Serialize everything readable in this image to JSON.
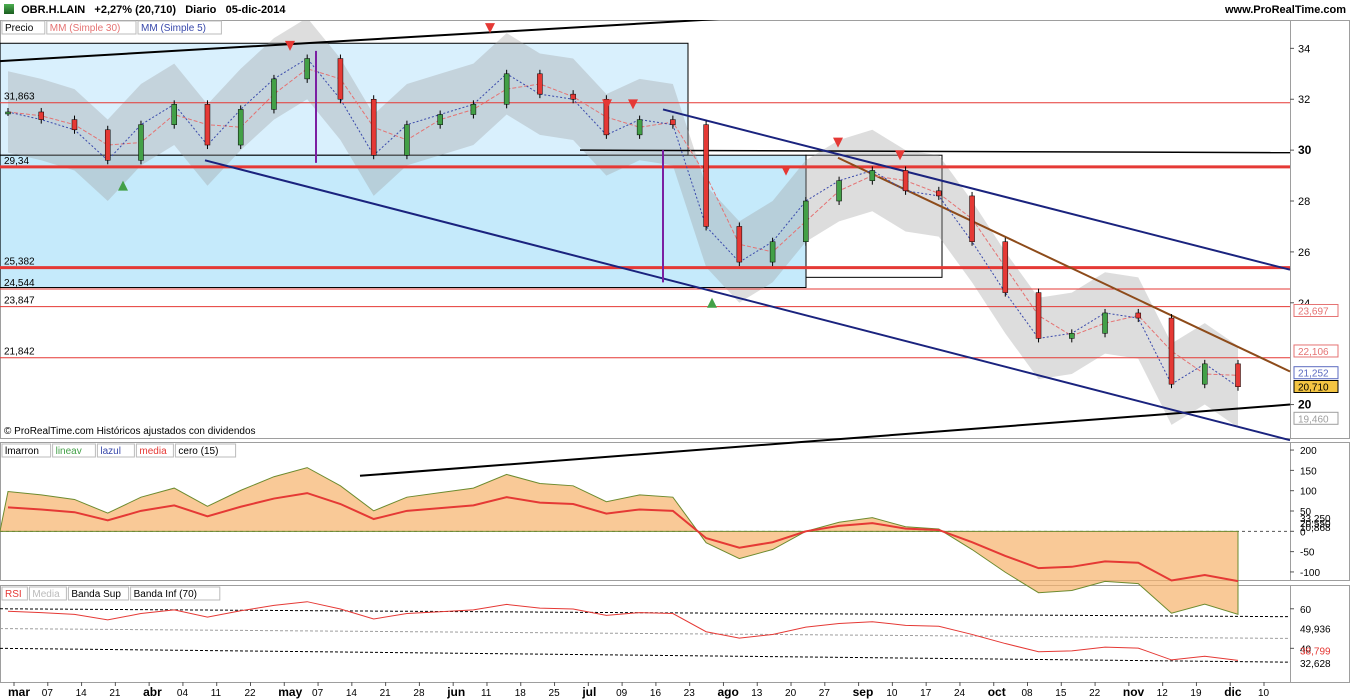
{
  "header": {
    "ticker": "OBR.H.LAIN",
    "change": "+2,27% (20,710)",
    "period": "Diario",
    "date": "05-dic-2014",
    "brand": "www.ProRealTime.com"
  },
  "price_panel": {
    "legend": [
      "Precio",
      "MM (Simple 30)",
      "MM (Simple 5)"
    ],
    "copyright": "© ProRealTime.com Históricos ajustados con dividendos",
    "hlines": [
      {
        "label": "31,863",
        "value": 31.863,
        "color": "#e53935",
        "bold": false
      },
      {
        "label": "29,34",
        "value": 29.34,
        "color": "#e53935",
        "bold": true
      },
      {
        "label": "25,382",
        "value": 25.382,
        "color": "#e53935",
        "bold": true
      },
      {
        "label": "24,544",
        "value": 24.544,
        "color": "#e53935",
        "bold": false
      },
      {
        "label": "23,847",
        "value": 23.847,
        "color": "#e53935",
        "bold": false
      },
      {
        "label": "21,842",
        "value": 21.842,
        "color": "#e53935",
        "bold": false
      }
    ],
    "axis_ticks": [
      "34",
      "32",
      "30",
      "28",
      "26",
      "24",
      "20"
    ],
    "axis_tags": [
      {
        "label": "23,697",
        "value": 23.697,
        "color": "#e57373"
      },
      {
        "label": "22,106",
        "value": 22.106,
        "color": "#e57373"
      },
      {
        "label": "21,252",
        "value": 21.252,
        "color": "#5c6bc0"
      },
      {
        "label": "20,710",
        "value": 20.71,
        "color": "#000000",
        "bg": "#f4c542"
      },
      {
        "label": "19,460",
        "value": 19.46,
        "color": "#9e9e9e"
      }
    ]
  },
  "osc_panel": {
    "legend": [
      "lmarron",
      "lineav",
      "lazul",
      "media",
      "cero (15)"
    ],
    "axis_ticks": [
      "200",
      "150",
      "100",
      "50",
      "0",
      "-50",
      "-100"
    ],
    "axis_tags": [
      "33,250",
      "20,550",
      "10,868"
    ]
  },
  "rsi_panel": {
    "legend": [
      "RSI",
      "Media",
      "Banda Sup",
      "Banda Inf (70)"
    ],
    "axis_ticks": [
      "60",
      "40"
    ],
    "axis_tags": [
      "49,936",
      "38,799",
      "32,628"
    ]
  },
  "x_axis": {
    "labels": [
      "mar",
      "07",
      "14",
      "21",
      "abr",
      "04",
      "11",
      "22",
      "may",
      "07",
      "14",
      "21",
      "28",
      "jun",
      "11",
      "18",
      "25",
      "jul",
      "09",
      "16",
      "23",
      "ago",
      "13",
      "20",
      "27",
      "sep",
      "10",
      "17",
      "24",
      "oct",
      "08",
      "15",
      "22",
      "nov",
      "12",
      "19",
      "dic",
      "10"
    ]
  },
  "chart_data": {
    "type": "line",
    "title": "",
    "xlabel": "",
    "ylabel": "",
    "ylim": [
      19,
      34.8
    ],
    "x": [
      "mar",
      "07",
      "14",
      "21",
      "abr",
      "04",
      "11",
      "22",
      "may",
      "07",
      "14",
      "21",
      "28",
      "jun",
      "11",
      "18",
      "25",
      "jul",
      "09",
      "16",
      "23",
      "ago",
      "13",
      "20",
      "27",
      "sep",
      "10",
      "17",
      "24",
      "oct",
      "08",
      "15",
      "22",
      "nov",
      "12",
      "19",
      "dic",
      "10"
    ],
    "series": [
      {
        "name": "Precio",
        "values": [
          31.5,
          31.2,
          30.8,
          29.6,
          31.0,
          31.8,
          30.2,
          31.6,
          32.8,
          33.6,
          32.0,
          29.8,
          31.0,
          31.4,
          31.8,
          33.0,
          32.2,
          32.0,
          30.6,
          31.2,
          31.0,
          27.0,
          25.6,
          26.4,
          28.0,
          28.8,
          29.2,
          28.4,
          28.2,
          26.4,
          24.4,
          22.6,
          22.8,
          23.6,
          23.4,
          20.8,
          21.6,
          20.7
        ]
      }
    ],
    "grid": true,
    "legend": "top-left"
  }
}
